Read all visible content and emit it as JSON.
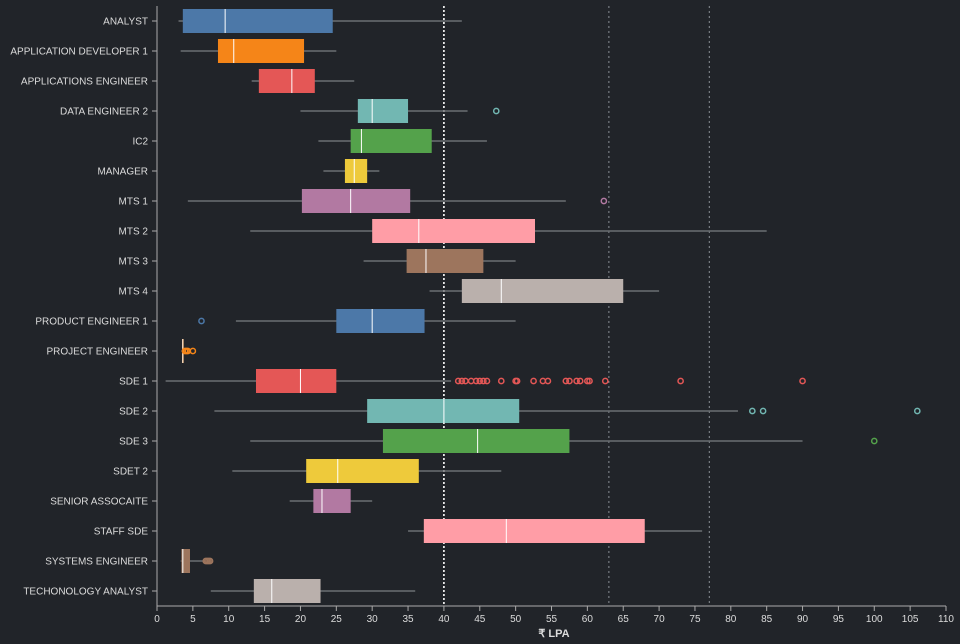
{
  "chart_data": {
    "type": "boxplot",
    "xlabel": "₹ LPA",
    "xlim": [
      0,
      110
    ],
    "xticks": [
      0,
      5,
      10,
      15,
      20,
      25,
      30,
      35,
      40,
      45,
      50,
      55,
      60,
      65,
      70,
      75,
      80,
      85,
      90,
      95,
      100,
      105,
      110
    ],
    "reference_lines": [
      {
        "x": 40,
        "style": "dotted-white"
      },
      {
        "x": 63,
        "style": "dotted-gray"
      },
      {
        "x": 77,
        "style": "dotted-gray"
      }
    ],
    "categories": [
      {
        "label": "ANALYST",
        "color": "#4c78a8",
        "wmin": 3,
        "q1": 3.6,
        "median": 9.5,
        "q3": 24.5,
        "wmax": 42.5,
        "outliers": []
      },
      {
        "label": "APPLICATION DEVELOPER 1",
        "color": "#f58518",
        "wmin": 3.3,
        "q1": 8.5,
        "median": 10.7,
        "q3": 20.5,
        "wmax": 25,
        "outliers": []
      },
      {
        "label": "APPLICATIONS ENGINEER",
        "color": "#e45756",
        "wmin": 13.2,
        "q1": 14.2,
        "median": 18.8,
        "q3": 22,
        "wmax": 27.5,
        "outliers": []
      },
      {
        "label": "DATA ENGINEER 2",
        "color": "#72b7b2",
        "wmin": 20,
        "q1": 28,
        "median": 30,
        "q3": 35,
        "wmax": 43.3,
        "outliers": [
          47.3
        ]
      },
      {
        "label": "IC2",
        "color": "#54a24b",
        "wmin": 22.5,
        "q1": 27,
        "median": 28.5,
        "q3": 38.3,
        "wmax": 46,
        "outliers": []
      },
      {
        "label": "MANAGER",
        "color": "#eeca3b",
        "wmin": 23.2,
        "q1": 26.2,
        "median": 27.5,
        "q3": 29.3,
        "wmax": 31,
        "outliers": []
      },
      {
        "label": "MTS 1",
        "color": "#b279a2",
        "wmin": 4.3,
        "q1": 20.2,
        "median": 27,
        "q3": 35.3,
        "wmax": 57,
        "outliers": [
          62.3
        ]
      },
      {
        "label": "MTS 2",
        "color": "#ff9da6",
        "wmin": 13,
        "q1": 30,
        "median": 36.5,
        "q3": 52.7,
        "wmax": 85,
        "outliers": []
      },
      {
        "label": "MTS 3",
        "color": "#9d755d",
        "wmin": 28.8,
        "q1": 34.8,
        "median": 37.5,
        "q3": 45.5,
        "wmax": 50,
        "outliers": []
      },
      {
        "label": "MTS 4",
        "color": "#bab0ac",
        "wmin": 38,
        "q1": 42.5,
        "median": 48,
        "q3": 65,
        "wmax": 70,
        "outliers": []
      },
      {
        "label": "PRODUCT ENGINEER 1",
        "color": "#4c78a8",
        "wmin": 11,
        "q1": 25,
        "median": 30,
        "q3": 37.3,
        "wmax": 50,
        "outliers": [
          6.2
        ]
      },
      {
        "label": "PROJECT ENGINEER",
        "color": "#f58518",
        "wmin": 3.4,
        "q1": 3.5,
        "median": 3.6,
        "q3": 3.7,
        "wmax": 3.8,
        "outliers": [
          3.9,
          4.1,
          4.3,
          5
        ]
      },
      {
        "label": "SDE 1",
        "color": "#e45756",
        "wmin": 1.2,
        "q1": 13.8,
        "median": 20,
        "q3": 25,
        "wmax": 41,
        "outliers": [
          42,
          42.5,
          43,
          43.8,
          44.5,
          45,
          45.5,
          46,
          48,
          50,
          50.2,
          52.5,
          53.8,
          54.5,
          57,
          57.5,
          58.5,
          59,
          60,
          60.3,
          62.5,
          73,
          90
        ]
      },
      {
        "label": "SDE 2",
        "color": "#72b7b2",
        "wmin": 8,
        "q1": 29.3,
        "median": 40,
        "q3": 50.5,
        "wmax": 81,
        "outliers": [
          83,
          84.5,
          106
        ]
      },
      {
        "label": "SDE 3",
        "color": "#54a24b",
        "wmin": 13,
        "q1": 31.5,
        "median": 44.7,
        "q3": 57.5,
        "wmax": 90,
        "outliers": [
          100
        ]
      },
      {
        "label": "SDET 2",
        "color": "#eeca3b",
        "wmin": 10.5,
        "q1": 20.8,
        "median": 25.2,
        "q3": 36.5,
        "wmax": 48,
        "outliers": []
      },
      {
        "label": "SENIOR ASSOCAITE",
        "color": "#b279a2",
        "wmin": 18.5,
        "q1": 21.8,
        "median": 23,
        "q3": 27,
        "wmax": 30,
        "outliers": []
      },
      {
        "label": "STAFF SDE",
        "color": "#ff9da6",
        "wmin": 35,
        "q1": 37.2,
        "median": 48.7,
        "q3": 68,
        "wmax": 76,
        "outliers": []
      },
      {
        "label": "SYSTEMS ENGINEER",
        "color": "#9d755d",
        "wmin": 3.3,
        "q1": 3.4,
        "median": 3.6,
        "q3": 4.6,
        "wmax": 6.5,
        "outliers": [
          6.8,
          7,
          7.2,
          7.4
        ]
      },
      {
        "label": "TECHONOLOGY ANALYST",
        "color": "#bab0ac",
        "wmin": 7.5,
        "q1": 13.5,
        "median": 16,
        "q3": 22.8,
        "wmax": 36,
        "outliers": []
      }
    ]
  }
}
